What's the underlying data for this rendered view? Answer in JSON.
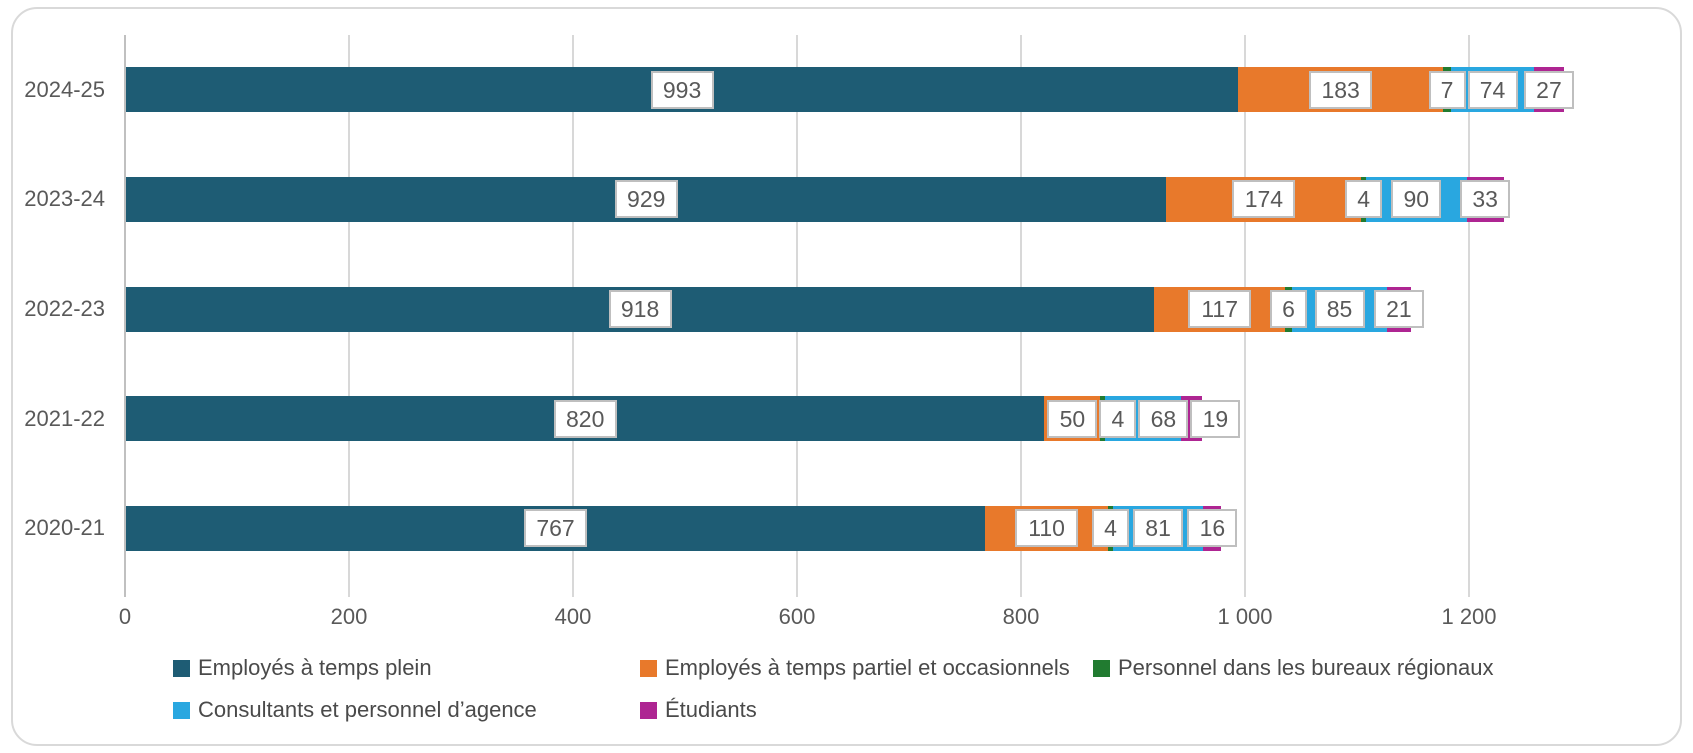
{
  "chart_data": {
    "type": "bar",
    "orientation": "horizontal",
    "stacked": true,
    "title": "",
    "xlabel": "",
    "ylabel": "",
    "grid": true,
    "legend_position": "bottom",
    "categories": [
      "2024-25",
      "2023-24",
      "2022-23",
      "2021-22",
      "2020-21"
    ],
    "series": [
      {
        "name": "Employés à temps plein",
        "color": "#1e5c74",
        "values": [
          993,
          929,
          918,
          820,
          767
        ]
      },
      {
        "name": "Employés à temps partiel et occasionnels",
        "color": "#e8792b",
        "values": [
          183,
          174,
          117,
          50,
          110
        ]
      },
      {
        "name": "Personnel dans les bureaux régionaux",
        "color": "#217b30",
        "values": [
          7,
          4,
          6,
          4,
          4
        ]
      },
      {
        "name": "Consultants et personnel d’agence",
        "color": "#29a7e0",
        "values": [
          74,
          90,
          85,
          68,
          81
        ]
      },
      {
        "name": "Étudiants",
        "color": "#ae2592",
        "values": [
          27,
          33,
          21,
          19,
          16
        ]
      }
    ],
    "x_axis": {
      "ticks": [
        0,
        200,
        400,
        600,
        800,
        1000,
        1200
      ],
      "tick_labels": [
        "0",
        "200",
        "400",
        "600",
        "800",
        "1 000",
        "1 200"
      ],
      "max": 1400
    },
    "data_labels_shown": true,
    "colors": {
      "label_box_border": "#bfbfbf",
      "gridline": "#d8d8d8",
      "axis_line": "#c0c0c0",
      "text": "#595959",
      "card_border": "#d9d9d9"
    }
  }
}
